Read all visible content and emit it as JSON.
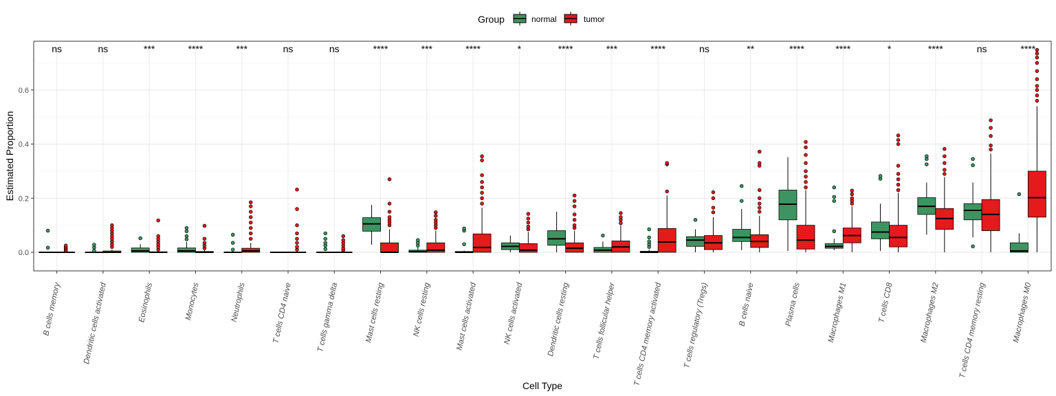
{
  "chart_data": {
    "type": "boxplot",
    "xlabel": "Cell Type",
    "ylabel": "Estimated Proportion",
    "ylim": [
      -0.032,
      0.78
    ],
    "yticks": [
      0.0,
      0.2,
      0.4,
      0.6
    ],
    "ytick_labels": [
      "0.0",
      "0.2",
      "0.4",
      "0.6"
    ],
    "legend": {
      "title": "Group",
      "position": "top",
      "entries": [
        {
          "name": "normal",
          "color": "#3e9461"
        },
        {
          "name": "tumor",
          "color": "#e41a1c"
        }
      ]
    },
    "categories": [
      "B cells memory",
      "Dendritic cells activated",
      "Eosinophils",
      "Monocytes",
      "Neutrophils",
      "T cells CD4 naive",
      "T cells gamma delta",
      "Mast cells resting",
      "NK cells resting",
      "Mast cells activated",
      "NK cells activated",
      "Dendritic cells resting",
      "T cells follicular helper",
      "T cells CD4 memory activated",
      "T cells regulatory (Tregs)",
      "B cells naive",
      "Plasma cells",
      "Macrophages M1",
      "T cells CD8",
      "Macrophages M2",
      "T cells CD4 memory resting",
      "Macrophages M0"
    ],
    "significance": [
      "ns",
      "ns",
      "***",
      "****",
      "***",
      "ns",
      "ns",
      "****",
      "***",
      "****",
      "*",
      "****",
      "***",
      "****",
      "ns",
      "**",
      "****",
      "****",
      "*",
      "****",
      "ns",
      "****"
    ],
    "series": [
      {
        "name": "normal",
        "boxes": [
          {
            "q1": 0,
            "median": 0,
            "q3": 0,
            "whislo": 0,
            "whishi": 0,
            "outliers": [
              0.017,
              0.08
            ]
          },
          {
            "q1": 0,
            "median": 0,
            "q3": 0,
            "whislo": 0,
            "whishi": 0,
            "outliers": [
              0.006,
              0.018,
              0.028
            ]
          },
          {
            "q1": 0,
            "median": 0.005,
            "q3": 0.016,
            "whislo": 0,
            "whishi": 0.03,
            "outliers": [
              0.052
            ]
          },
          {
            "q1": 0,
            "median": 0.005,
            "q3": 0.016,
            "whislo": 0,
            "whishi": 0.038,
            "outliers": [
              0.048,
              0.06,
              0.078,
              0.09
            ]
          },
          {
            "q1": 0,
            "median": 0,
            "q3": 0,
            "whislo": 0,
            "whishi": 0,
            "outliers": [
              0.01,
              0.035,
              0.065
            ]
          },
          {
            "q1": 0,
            "median": 0,
            "q3": 0,
            "whislo": 0,
            "whishi": 0,
            "outliers": []
          },
          {
            "q1": 0,
            "median": 0,
            "q3": 0,
            "whislo": 0,
            "whishi": 0,
            "outliers": [
              0.012,
              0.025,
              0.035,
              0.05,
              0.07
            ]
          },
          {
            "q1": 0.078,
            "median": 0.105,
            "q3": 0.128,
            "whislo": 0.028,
            "whishi": 0.175,
            "outliers": []
          },
          {
            "q1": 0,
            "median": 0.003,
            "q3": 0.008,
            "whislo": 0,
            "whishi": 0.018,
            "outliers": [
              0.025,
              0.035,
              0.045
            ]
          },
          {
            "q1": 0,
            "median": 0,
            "q3": 0.003,
            "whislo": 0,
            "whishi": 0.006,
            "outliers": [
              0.03,
              0.08,
              0.088
            ]
          },
          {
            "q1": 0.01,
            "median": 0.022,
            "q3": 0.035,
            "whislo": 0,
            "whishi": 0.062,
            "outliers": []
          },
          {
            "q1": 0.026,
            "median": 0.05,
            "q3": 0.08,
            "whislo": 0,
            "whishi": 0.15,
            "outliers": []
          },
          {
            "q1": 0,
            "median": 0.008,
            "q3": 0.018,
            "whislo": 0,
            "whishi": 0.04,
            "outliers": [
              0.062
            ]
          },
          {
            "q1": 0,
            "median": 0,
            "q3": 0.004,
            "whislo": 0,
            "whishi": 0.01,
            "outliers": [
              0.02,
              0.03,
              0.04,
              0.055,
              0.085
            ]
          },
          {
            "q1": 0.022,
            "median": 0.045,
            "q3": 0.058,
            "whislo": 0,
            "whishi": 0.085,
            "outliers": [
              0.12
            ]
          },
          {
            "q1": 0.04,
            "median": 0.055,
            "q3": 0.085,
            "whislo": 0.008,
            "whishi": 0.16,
            "outliers": [
              0.19,
              0.245
            ]
          },
          {
            "q1": 0.12,
            "median": 0.178,
            "q3": 0.23,
            "whislo": 0.005,
            "whishi": 0.352,
            "outliers": []
          },
          {
            "q1": 0.015,
            "median": 0.022,
            "q3": 0.032,
            "whislo": 0.008,
            "whishi": 0.05,
            "outliers": [
              0.078,
              0.19,
              0.205,
              0.24
            ]
          },
          {
            "q1": 0.05,
            "median": 0.075,
            "q3": 0.112,
            "whislo": 0.005,
            "whishi": 0.18,
            "outliers": [
              0.272,
              0.282
            ]
          },
          {
            "q1": 0.14,
            "median": 0.17,
            "q3": 0.202,
            "whislo": 0.065,
            "whishi": 0.258,
            "outliers": [
              0.325,
              0.345,
              0.355
            ]
          },
          {
            "q1": 0.12,
            "median": 0.155,
            "q3": 0.18,
            "whislo": 0.055,
            "whishi": 0.258,
            "outliers": [
              0.022,
              0.322,
              0.345
            ]
          },
          {
            "q1": 0,
            "median": 0.005,
            "q3": 0.035,
            "whislo": 0,
            "whishi": 0.07,
            "outliers": [
              0.215
            ]
          }
        ]
      },
      {
        "name": "tumor",
        "boxes": [
          {
            "q1": 0,
            "median": 0,
            "q3": 0,
            "whislo": 0,
            "whishi": 0,
            "outliers": [
              0.005,
              0.01,
              0.015,
              0.02,
              0.025
            ]
          },
          {
            "q1": 0,
            "median": 0,
            "q3": 0.005,
            "whislo": 0,
            "whishi": 0.01,
            "outliers": [
              0.02,
              0.03,
              0.04,
              0.05,
              0.06,
              0.07,
              0.08,
              0.09,
              0.1
            ]
          },
          {
            "q1": 0,
            "median": 0,
            "q3": 0.002,
            "whislo": 0,
            "whishi": 0.005,
            "outliers": [
              0.01,
              0.02,
              0.03,
              0.04,
              0.05,
              0.06,
              0.118
            ]
          },
          {
            "q1": 0,
            "median": 0,
            "q3": 0.003,
            "whislo": 0,
            "whishi": 0.008,
            "outliers": [
              0.015,
              0.025,
              0.035,
              0.05,
              0.098
            ]
          },
          {
            "q1": 0,
            "median": 0.005,
            "q3": 0.015,
            "whislo": 0,
            "whishi": 0.035,
            "outliers": [
              0.05,
              0.07,
              0.09,
              0.11,
              0.13,
              0.15,
              0.17,
              0.185
            ]
          },
          {
            "q1": 0,
            "median": 0,
            "q3": 0,
            "whislo": 0,
            "whishi": 0,
            "outliers": [
              0.01,
              0.02,
              0.035,
              0.05,
              0.07,
              0.1,
              0.16,
              0.232
            ]
          },
          {
            "q1": 0,
            "median": 0,
            "q3": 0,
            "whislo": 0,
            "whishi": 0,
            "outliers": [
              0.008,
              0.015,
              0.025,
              0.035,
              0.045,
              0.06
            ]
          },
          {
            "q1": 0,
            "median": 0,
            "q3": 0.035,
            "whislo": 0,
            "whishi": 0.085,
            "outliers": [
              0.1,
              0.11,
              0.12,
              0.13,
              0.15,
              0.18,
              0.27
            ]
          },
          {
            "q1": 0,
            "median": 0.008,
            "q3": 0.035,
            "whislo": 0,
            "whishi": 0.08,
            "outliers": [
              0.09,
              0.1,
              0.11,
              0.12,
              0.135,
              0.148
            ]
          },
          {
            "q1": 0,
            "median": 0.018,
            "q3": 0.068,
            "whislo": 0,
            "whishi": 0.165,
            "outliers": [
              0.18,
              0.2,
              0.22,
              0.24,
              0.26,
              0.285,
              0.34,
              0.355
            ]
          },
          {
            "q1": 0,
            "median": 0.008,
            "q3": 0.032,
            "whislo": 0,
            "whishi": 0.075,
            "outliers": [
              0.085,
              0.095,
              0.11,
              0.125,
              0.142
            ]
          },
          {
            "q1": 0,
            "median": 0.015,
            "q3": 0.035,
            "whislo": 0,
            "whishi": 0.08,
            "outliers": [
              0.09,
              0.1,
              0.12,
              0.14,
              0.17,
              0.19,
              0.21
            ]
          },
          {
            "q1": 0,
            "median": 0.02,
            "q3": 0.042,
            "whislo": 0,
            "whishi": 0.1,
            "outliers": [
              0.108,
              0.12,
              0.13,
              0.145
            ]
          },
          {
            "q1": 0,
            "median": 0.038,
            "q3": 0.088,
            "whislo": 0,
            "whishi": 0.21,
            "outliers": [
              0.225,
              0.325,
              0.33
            ]
          },
          {
            "q1": 0.01,
            "median": 0.035,
            "q3": 0.062,
            "whislo": 0,
            "whishi": 0.13,
            "outliers": [
              0.148,
              0.165,
              0.2,
              0.222
            ]
          },
          {
            "q1": 0.018,
            "median": 0.04,
            "q3": 0.065,
            "whislo": 0,
            "whishi": 0.135,
            "outliers": [
              0.15,
              0.165,
              0.18,
              0.2,
              0.23,
              0.32,
              0.33,
              0.372
            ]
          },
          {
            "q1": 0.012,
            "median": 0.045,
            "q3": 0.1,
            "whislo": 0,
            "whishi": 0.23,
            "outliers": [
              0.24,
              0.26,
              0.28,
              0.3,
              0.33,
              0.36,
              0.388,
              0.408
            ]
          },
          {
            "q1": 0.035,
            "median": 0.062,
            "q3": 0.09,
            "whislo": 0,
            "whishi": 0.17,
            "outliers": [
              0.18,
              0.19,
              0.2,
              0.215,
              0.228
            ]
          },
          {
            "q1": 0.02,
            "median": 0.055,
            "q3": 0.1,
            "whislo": 0,
            "whishi": 0.22,
            "outliers": [
              0.23,
              0.25,
              0.27,
              0.29,
              0.32,
              0.4,
              0.415,
              0.432
            ]
          },
          {
            "q1": 0.085,
            "median": 0.125,
            "q3": 0.162,
            "whislo": 0,
            "whishi": 0.278,
            "outliers": [
              0.29,
              0.305,
              0.33,
              0.355,
              0.382
            ]
          },
          {
            "q1": 0.08,
            "median": 0.14,
            "q3": 0.195,
            "whislo": 0,
            "whishi": 0.365,
            "outliers": [
              0.38,
              0.395,
              0.43,
              0.46,
              0.488
            ]
          },
          {
            "q1": 0.13,
            "median": 0.202,
            "q3": 0.3,
            "whislo": 0,
            "whishi": 0.54,
            "outliers": [
              0.56,
              0.58,
              0.6,
              0.615,
              0.64,
              0.67,
              0.7,
              0.72,
              0.735,
              0.748
            ]
          }
        ]
      }
    ]
  }
}
